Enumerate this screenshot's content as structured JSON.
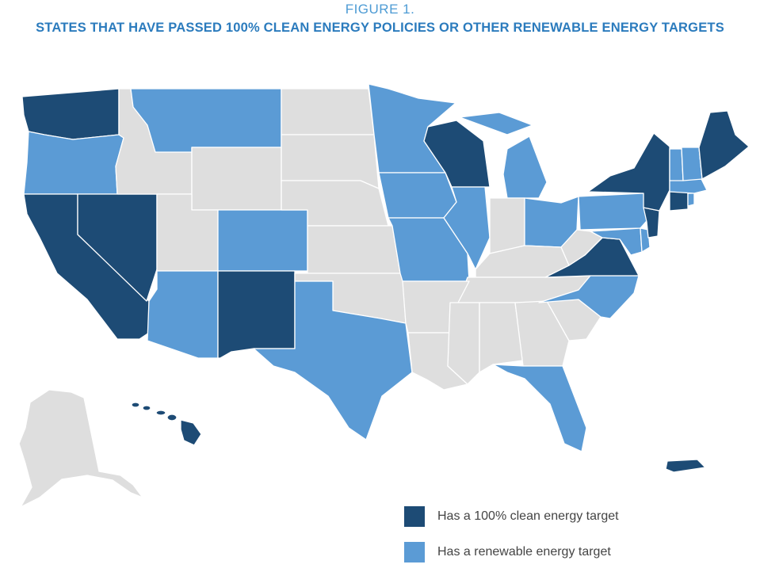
{
  "figure_label": "FIGURE 1.",
  "title": "STATES THAT HAVE PASSED 100% CLEAN ENERGY POLICIES OR OTHER RENEWABLE ENERGY TARGETS",
  "colors": {
    "clean_100": "#1d4b75",
    "renewable": "#5b9bd5",
    "none": "#dedede"
  },
  "legend": [
    {
      "key": "clean_100",
      "label": "Has a 100% clean energy target"
    },
    {
      "key": "renewable",
      "label": "Has a renewable energy target"
    }
  ],
  "states": {
    "WA": "clean_100",
    "OR": "renewable",
    "CA": "clean_100",
    "NV": "clean_100",
    "ID": "none",
    "MT": "renewable",
    "WY": "none",
    "UT": "none",
    "CO": "renewable",
    "AZ": "renewable",
    "NM": "clean_100",
    "ND": "none",
    "SD": "none",
    "NE": "none",
    "KS": "none",
    "OK": "none",
    "TX": "renewable",
    "MN": "renewable",
    "IA": "renewable",
    "MO": "renewable",
    "AR": "none",
    "LA": "none",
    "WI": "clean_100",
    "IL": "renewable",
    "MI": "renewable",
    "IN": "none",
    "OH": "renewable",
    "KY": "none",
    "TN": "none",
    "MS": "none",
    "AL": "none",
    "GA": "none",
    "FL": "renewable",
    "SC": "none",
    "NC": "renewable",
    "VA": "clean_100",
    "WV": "none",
    "PA": "renewable",
    "NY": "clean_100",
    "NJ": "clean_100",
    "DE": "renewable",
    "MD": "renewable",
    "CT": "clean_100",
    "RI": "renewable",
    "MA": "renewable",
    "VT": "renewable",
    "NH": "renewable",
    "ME": "clean_100",
    "AK": "none",
    "HI": "clean_100",
    "PR": "clean_100"
  }
}
